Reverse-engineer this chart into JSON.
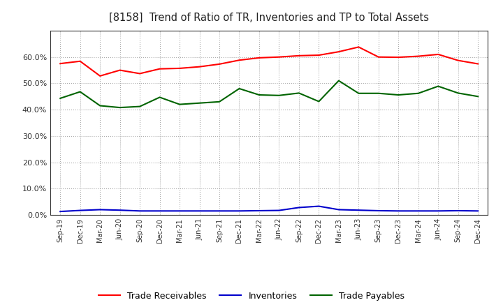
{
  "title": "[8158]  Trend of Ratio of TR, Inventories and TP to Total Assets",
  "x_labels": [
    "Sep-19",
    "Dec-19",
    "Mar-20",
    "Jun-20",
    "Sep-20",
    "Dec-20",
    "Mar-21",
    "Jun-21",
    "Sep-21",
    "Dec-21",
    "Mar-22",
    "Jun-22",
    "Sep-22",
    "Dec-22",
    "Mar-23",
    "Jun-23",
    "Sep-23",
    "Dec-23",
    "Mar-24",
    "Jun-24",
    "Sep-24",
    "Dec-24"
  ],
  "trade_receivables": [
    0.575,
    0.584,
    0.528,
    0.55,
    0.537,
    0.555,
    0.557,
    0.563,
    0.573,
    0.588,
    0.597,
    0.6,
    0.605,
    0.607,
    0.62,
    0.638,
    0.6,
    0.599,
    0.603,
    0.61,
    0.587,
    0.574
  ],
  "inventories": [
    0.013,
    0.017,
    0.02,
    0.018,
    0.015,
    0.015,
    0.015,
    0.015,
    0.015,
    0.015,
    0.016,
    0.017,
    0.028,
    0.033,
    0.02,
    0.018,
    0.016,
    0.015,
    0.015,
    0.015,
    0.016,
    0.015
  ],
  "trade_payables": [
    0.443,
    0.468,
    0.415,
    0.408,
    0.412,
    0.447,
    0.42,
    0.425,
    0.43,
    0.48,
    0.456,
    0.454,
    0.463,
    0.431,
    0.51,
    0.462,
    0.462,
    0.456,
    0.462,
    0.489,
    0.463,
    0.45
  ],
  "tr_color": "#ff0000",
  "inv_color": "#0000cc",
  "tp_color": "#006400",
  "ylim": [
    0.0,
    0.7
  ],
  "yticks": [
    0.0,
    0.1,
    0.2,
    0.3,
    0.4,
    0.5,
    0.6
  ],
  "background_color": "#ffffff",
  "grid_color": "#aaaaaa"
}
